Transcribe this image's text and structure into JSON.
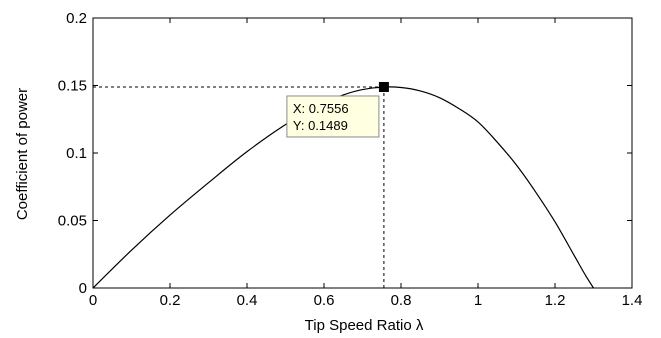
{
  "chart_data": {
    "type": "line",
    "xlabel": "Tip Speed Ratio λ",
    "ylabel": "Coefficient of power",
    "xlim": [
      0,
      1.4
    ],
    "ylim": [
      0,
      0.2
    ],
    "x_ticks": [
      "0",
      "0.2",
      "0.4",
      "0.6",
      "0.8",
      "1",
      "1.2",
      "1.4"
    ],
    "y_ticks": [
      "0",
      "0.05",
      "0.1",
      "0.15",
      "0.2"
    ],
    "grid": false,
    "series": [
      {
        "x": [
          0,
          0.1,
          0.2,
          0.3,
          0.4,
          0.5,
          0.6,
          0.65,
          0.7,
          0.7556,
          0.8,
          0.85,
          0.9,
          0.95,
          1.0,
          1.05,
          1.1,
          1.15,
          1.2,
          1.25,
          1.28,
          1.3
        ],
        "y": [
          0,
          0.028,
          0.054,
          0.078,
          0.101,
          0.121,
          0.137,
          0.143,
          0.147,
          0.1489,
          0.1485,
          0.146,
          0.141,
          0.133,
          0.123,
          0.108,
          0.091,
          0.071,
          0.049,
          0.024,
          0.009,
          0.0
        ],
        "color": "#000000"
      }
    ],
    "datatip": {
      "x": 0.7556,
      "y": 0.1489,
      "x_text": "X: 0.7556",
      "y_text": "Y: 0.1489",
      "background": "#ffffe1"
    }
  }
}
